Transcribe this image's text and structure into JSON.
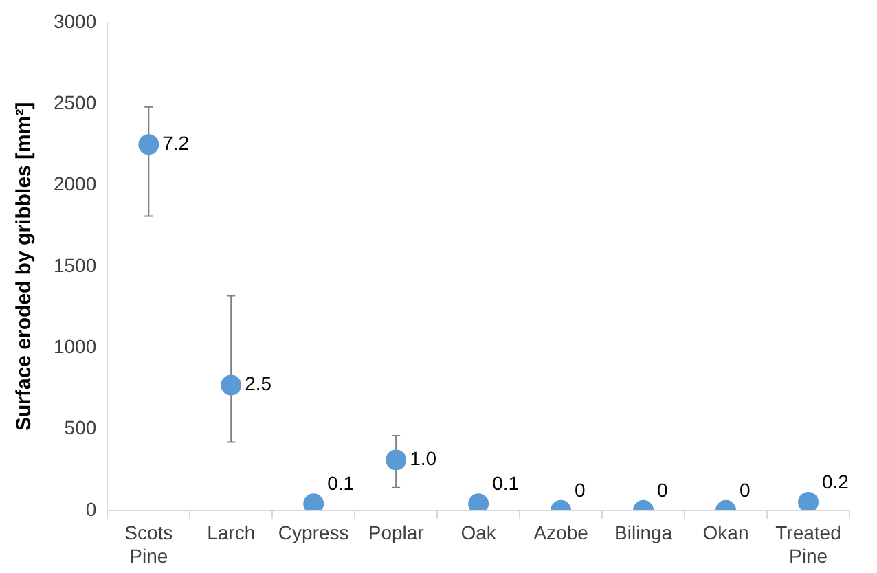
{
  "chart_data": {
    "type": "scatter",
    "ylabel": "Surface eroded by gribbles [mm²]",
    "categories": [
      "Scots\nPine",
      "Larch",
      "Cypress",
      "Poplar",
      "Oak",
      "Azobe",
      "Bilinga",
      "Okan",
      "Treated\nPine"
    ],
    "values": [
      2250,
      770,
      40,
      310,
      40,
      0,
      0,
      0,
      50
    ],
    "errors": [
      [
        1810,
        2480
      ],
      [
        420,
        1320
      ],
      null,
      [
        140,
        460
      ],
      null,
      null,
      null,
      null,
      null
    ],
    "annotations": [
      {
        "text": "7.2",
        "x": "Scots\nPine",
        "y": 2250
      },
      {
        "text": "2.5",
        "x": "Larch",
        "y": 770
      },
      {
        "text": "0.1",
        "x": "Cypress",
        "y": 40
      },
      {
        "text": "1.0",
        "x": "Poplar",
        "y": 310
      },
      {
        "text": "0.1",
        "x": "Oak",
        "y": 40
      },
      {
        "text": "0",
        "x": "Azobe",
        "y": 0
      },
      {
        "text": "0",
        "x": "Bilinga",
        "y": 0
      },
      {
        "text": "0",
        "x": "Okan",
        "y": 0
      },
      {
        "text": "0.2",
        "x": "Treated\nPine",
        "y": 50
      }
    ],
    "color": "#5b9bd5",
    "marker": "circle",
    "grid": false,
    "legend": false,
    "ylim": [
      0,
      3000
    ],
    "yticks": [
      0,
      500,
      1000,
      1500,
      2000,
      2500,
      3000
    ]
  }
}
